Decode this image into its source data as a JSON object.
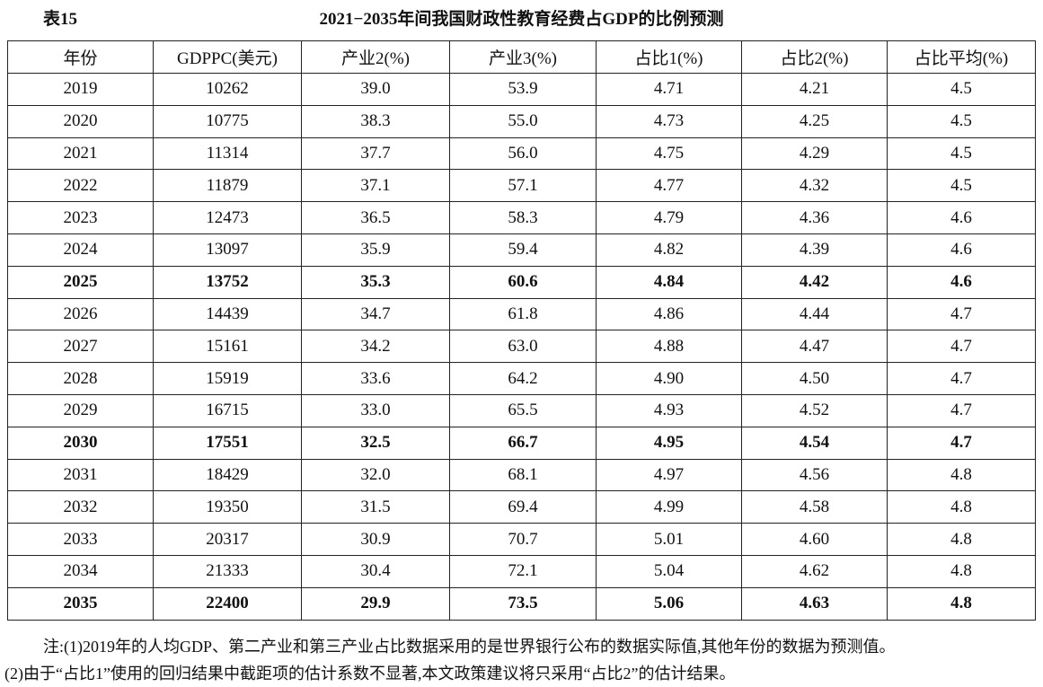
{
  "header": {
    "label": "表15",
    "title": "2021−2035年间我国财政性教育经费占GDP的比例预测"
  },
  "table": {
    "columns": [
      "年份",
      "GDPPC(美元)",
      "产业2(%)",
      "产业3(%)",
      "占比1(%)",
      "占比2(%)",
      "占比平均(%)"
    ],
    "rows": [
      [
        "2019",
        "10262",
        "39.0",
        "53.9",
        "4.71",
        "4.21",
        "4.5"
      ],
      [
        "2020",
        "10775",
        "38.3",
        "55.0",
        "4.73",
        "4.25",
        "4.5"
      ],
      [
        "2021",
        "11314",
        "37.7",
        "56.0",
        "4.75",
        "4.29",
        "4.5"
      ],
      [
        "2022",
        "11879",
        "37.1",
        "57.1",
        "4.77",
        "4.32",
        "4.5"
      ],
      [
        "2023",
        "12473",
        "36.5",
        "58.3",
        "4.79",
        "4.36",
        "4.6"
      ],
      [
        "2024",
        "13097",
        "35.9",
        "59.4",
        "4.82",
        "4.39",
        "4.6"
      ],
      [
        "2025",
        "13752",
        "35.3",
        "60.6",
        "4.84",
        "4.42",
        "4.6"
      ],
      [
        "2026",
        "14439",
        "34.7",
        "61.8",
        "4.86",
        "4.44",
        "4.7"
      ],
      [
        "2027",
        "15161",
        "34.2",
        "63.0",
        "4.88",
        "4.47",
        "4.7"
      ],
      [
        "2028",
        "15919",
        "33.6",
        "64.2",
        "4.90",
        "4.50",
        "4.7"
      ],
      [
        "2029",
        "16715",
        "33.0",
        "65.5",
        "4.93",
        "4.52",
        "4.7"
      ],
      [
        "2030",
        "17551",
        "32.5",
        "66.7",
        "4.95",
        "4.54",
        "4.7"
      ],
      [
        "2031",
        "18429",
        "32.0",
        "68.1",
        "4.97",
        "4.56",
        "4.8"
      ],
      [
        "2032",
        "19350",
        "31.5",
        "69.4",
        "4.99",
        "4.58",
        "4.8"
      ],
      [
        "2033",
        "20317",
        "30.9",
        "70.7",
        "5.01",
        "4.60",
        "4.8"
      ],
      [
        "2034",
        "21333",
        "30.4",
        "72.1",
        "5.04",
        "4.62",
        "4.8"
      ],
      [
        "2035",
        "22400",
        "29.9",
        "73.5",
        "5.06",
        "4.63",
        "4.8"
      ]
    ]
  },
  "notes": [
    "注:(1)2019年的人均GDP、第二产业和第三产业占比数据采用的是世界银行公布的数据实际值,其他年份的数据为预测值。",
    "(2)由于“占比1”使用的回归结果中截距项的估计系数不显著,本文政策建议将只采用“占比2”的估计结果。"
  ]
}
